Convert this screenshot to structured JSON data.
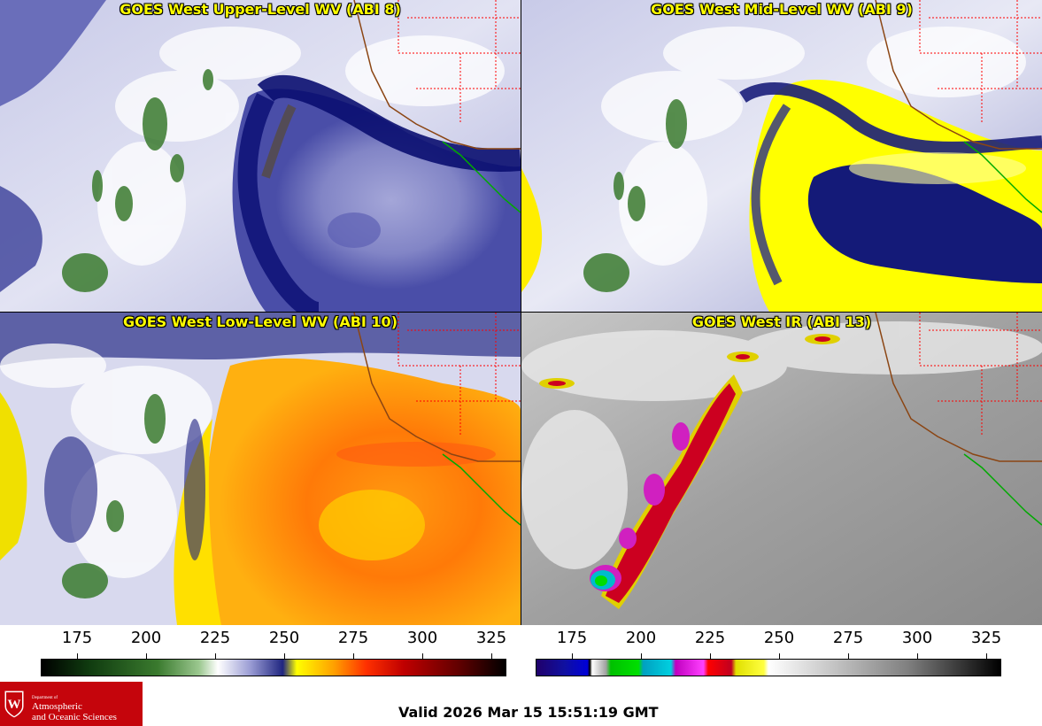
{
  "panels": [
    {
      "title": "GOES West Upper-Level WV (ABI 8)",
      "scheme": "wv"
    },
    {
      "title": "GOES West Mid-Level WV (ABI 9)",
      "scheme": "wv"
    },
    {
      "title": "GOES West Low-Level WV (ABI 10)",
      "scheme": "wv"
    },
    {
      "title": "GOES West IR (ABI 13)",
      "scheme": "ir"
    }
  ],
  "colorbars": [
    {
      "ticks": [
        "175",
        "200",
        "225",
        "250",
        "275",
        "300",
        "325"
      ]
    },
    {
      "ticks": [
        "175",
        "200",
        "225",
        "250",
        "275",
        "300",
        "325"
      ]
    }
  ],
  "valid_time": "Valid 2026 Mar 15 15:51:19 GMT",
  "logo": {
    "line1": "Department of",
    "line2": "Atmospheric",
    "line3": "and Oceanic Sciences"
  },
  "colors": {
    "title_text": "#ffff00",
    "state_borders": "#ff0000",
    "coastline": "#8b4513",
    "mexico_coast": "#00aa00",
    "logo_bg": "#c5050c"
  }
}
